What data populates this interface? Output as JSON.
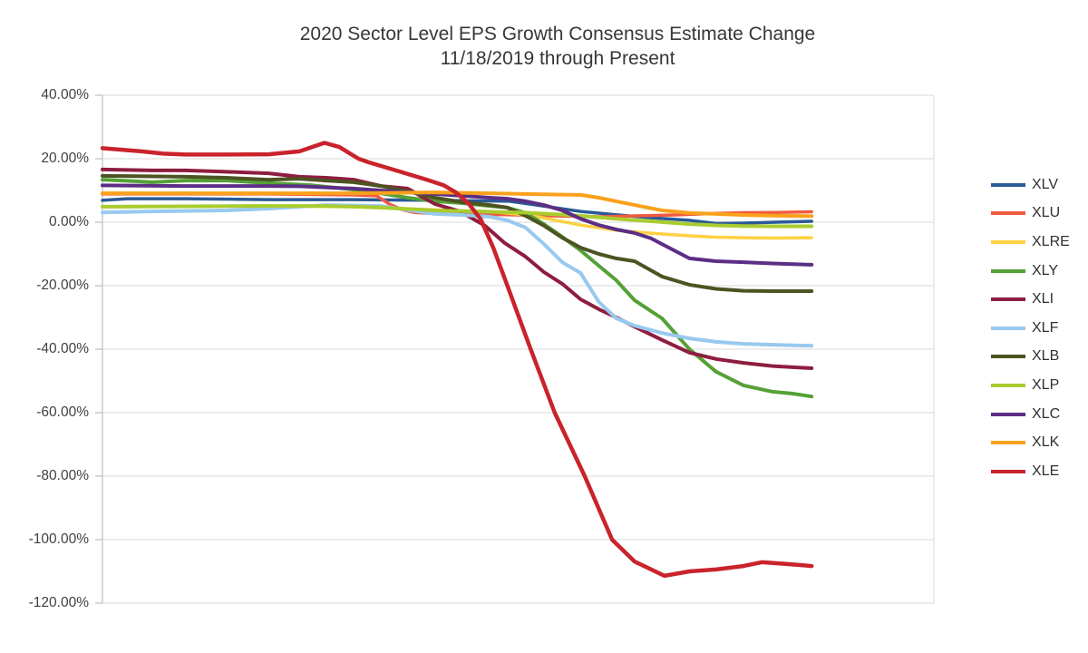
{
  "chart_data": {
    "type": "line",
    "title": "2020 Sector Level EPS Growth Consensus Estimate Change",
    "subtitle": "11/18/2019 through Present",
    "grid": true,
    "legend_position": "right",
    "y_axis": {
      "min": -120,
      "max": 40,
      "tick_step": 20,
      "format": "percent",
      "ticks": [
        {
          "label": "40.00%",
          "value": 40
        },
        {
          "label": "20.00%",
          "value": 20
        },
        {
          "label": "0.00%",
          "value": 0
        },
        {
          "label": "-20.00%",
          "value": -20
        },
        {
          "label": "-40.00%",
          "value": -40
        },
        {
          "label": "-60.00%",
          "value": -60
        },
        {
          "label": "-80.00%",
          "value": -80
        },
        {
          "label": "-100.00%",
          "value": -100
        },
        {
          "label": "-120.00%",
          "value": -120
        }
      ]
    },
    "x_axis": {
      "visible_labels": [],
      "span_fraction_of_plot_used_by_data": 0.853
    },
    "series": [
      {
        "name": "XLV",
        "color": "#2A5A95",
        "line_width": 3.5,
        "points": [
          [
            0,
            6.9
          ],
          [
            0.03,
            7.4
          ],
          [
            0.1,
            7.4
          ],
          [
            0.2,
            7.1
          ],
          [
            0.3,
            7.1
          ],
          [
            0.4,
            6.9
          ],
          [
            0.49,
            6.6
          ],
          [
            0.53,
            5.1
          ],
          [
            0.575,
            3.4
          ],
          [
            0.62,
            2.3
          ],
          [
            0.66,
            1.4
          ],
          [
            0.706,
            0.6
          ],
          [
            0.738,
            -0.4
          ],
          [
            0.771,
            -0.3
          ],
          [
            0.81,
            0.0
          ],
          [
            0.853,
            0.3
          ]
        ]
      },
      {
        "name": "XLU",
        "color": "#F05B40",
        "line_width": 3.5,
        "points": [
          [
            0,
            8.9
          ],
          [
            0.2,
            8.9
          ],
          [
            0.3,
            8.6
          ],
          [
            0.33,
            8.3
          ],
          [
            0.345,
            5.7
          ],
          [
            0.36,
            4.0
          ],
          [
            0.375,
            3.1
          ],
          [
            0.4,
            2.7
          ],
          [
            0.45,
            2.5
          ],
          [
            0.5,
            2.3
          ],
          [
            0.553,
            1.9
          ],
          [
            0.6,
            1.7
          ],
          [
            0.64,
            2.0
          ],
          [
            0.69,
            2.3
          ],
          [
            0.73,
            2.7
          ],
          [
            0.77,
            3.0
          ],
          [
            0.81,
            3.1
          ],
          [
            0.853,
            3.3
          ]
        ]
      },
      {
        "name": "XLRE",
        "color": "#FFD042",
        "line_width": 3.5,
        "points": [
          [
            0,
            4.9
          ],
          [
            0.1,
            5.0
          ],
          [
            0.2,
            5.1
          ],
          [
            0.3,
            4.9
          ],
          [
            0.4,
            3.9
          ],
          [
            0.433,
            3.6
          ],
          [
            0.466,
            3.4
          ],
          [
            0.51,
            2.3
          ],
          [
            0.53,
            1.4
          ],
          [
            0.575,
            -0.9
          ],
          [
            0.62,
            -2.6
          ],
          [
            0.64,
            -3.1
          ],
          [
            0.673,
            -3.7
          ],
          [
            0.706,
            -4.3
          ],
          [
            0.738,
            -4.7
          ],
          [
            0.771,
            -4.9
          ],
          [
            0.81,
            -5.0
          ],
          [
            0.853,
            -4.9
          ]
        ]
      },
      {
        "name": "XLY",
        "color": "#55A138",
        "line_width": 4,
        "points": [
          [
            0,
            13.4
          ],
          [
            0.04,
            12.9
          ],
          [
            0.06,
            12.6
          ],
          [
            0.1,
            13.1
          ],
          [
            0.15,
            13.1
          ],
          [
            0.2,
            12.3
          ],
          [
            0.25,
            11.7
          ],
          [
            0.3,
            10.3
          ],
          [
            0.335,
            9.1
          ],
          [
            0.367,
            7.7
          ],
          [
            0.4,
            6.6
          ],
          [
            0.433,
            6.0
          ],
          [
            0.466,
            5.1
          ],
          [
            0.487,
            4.6
          ],
          [
            0.509,
            2.9
          ],
          [
            0.531,
            -0.6
          ],
          [
            0.553,
            -4.6
          ],
          [
            0.575,
            -8.9
          ],
          [
            0.597,
            -13.7
          ],
          [
            0.618,
            -18.3
          ],
          [
            0.64,
            -24.6
          ],
          [
            0.673,
            -30.3
          ],
          [
            0.706,
            -40.0
          ],
          [
            0.738,
            -47.1
          ],
          [
            0.771,
            -51.4
          ],
          [
            0.806,
            -53.4
          ],
          [
            0.83,
            -54.0
          ],
          [
            0.853,
            -54.9
          ]
        ]
      },
      {
        "name": "XLI",
        "color": "#8E1D3F",
        "line_width": 4,
        "points": [
          [
            0,
            16.6
          ],
          [
            0.06,
            16.3
          ],
          [
            0.1,
            16.3
          ],
          [
            0.149,
            15.9
          ],
          [
            0.2,
            15.4
          ],
          [
            0.237,
            14.3
          ],
          [
            0.269,
            14.0
          ],
          [
            0.302,
            13.4
          ],
          [
            0.335,
            11.4
          ],
          [
            0.367,
            10.6
          ],
          [
            0.4,
            5.7
          ],
          [
            0.43,
            3.4
          ],
          [
            0.46,
            -1.1
          ],
          [
            0.484,
            -6.6
          ],
          [
            0.509,
            -10.9
          ],
          [
            0.531,
            -15.7
          ],
          [
            0.553,
            -19.4
          ],
          [
            0.575,
            -24.3
          ],
          [
            0.597,
            -27.4
          ],
          [
            0.618,
            -30.0
          ],
          [
            0.64,
            -32.9
          ],
          [
            0.673,
            -37.1
          ],
          [
            0.706,
            -41.1
          ],
          [
            0.738,
            -43.1
          ],
          [
            0.771,
            -44.3
          ],
          [
            0.806,
            -45.3
          ],
          [
            0.853,
            -46.0
          ]
        ]
      },
      {
        "name": "XLF",
        "color": "#99C9EE",
        "line_width": 4,
        "points": [
          [
            0,
            3.1
          ],
          [
            0.06,
            3.4
          ],
          [
            0.149,
            3.7
          ],
          [
            0.2,
            4.3
          ],
          [
            0.269,
            5.4
          ],
          [
            0.335,
            5.1
          ],
          [
            0.4,
            2.6
          ],
          [
            0.433,
            2.3
          ],
          [
            0.466,
            1.7
          ],
          [
            0.487,
            0.6
          ],
          [
            0.509,
            -1.7
          ],
          [
            0.531,
            -6.9
          ],
          [
            0.553,
            -12.6
          ],
          [
            0.575,
            -16.0
          ],
          [
            0.597,
            -25.1
          ],
          [
            0.618,
            -30.3
          ],
          [
            0.64,
            -32.6
          ],
          [
            0.673,
            -34.9
          ],
          [
            0.706,
            -36.6
          ],
          [
            0.738,
            -37.7
          ],
          [
            0.771,
            -38.3
          ],
          [
            0.806,
            -38.6
          ],
          [
            0.853,
            -38.9
          ]
        ]
      },
      {
        "name": "XLB",
        "color": "#4C5422",
        "line_width": 4,
        "points": [
          [
            0,
            14.6
          ],
          [
            0.1,
            14.3
          ],
          [
            0.149,
            14.0
          ],
          [
            0.2,
            13.4
          ],
          [
            0.237,
            13.7
          ],
          [
            0.269,
            13.1
          ],
          [
            0.302,
            12.6
          ],
          [
            0.335,
            11.4
          ],
          [
            0.367,
            9.7
          ],
          [
            0.4,
            7.7
          ],
          [
            0.433,
            6.3
          ],
          [
            0.466,
            5.4
          ],
          [
            0.487,
            4.6
          ],
          [
            0.509,
            2.0
          ],
          [
            0.531,
            -1.1
          ],
          [
            0.553,
            -4.9
          ],
          [
            0.575,
            -8.0
          ],
          [
            0.597,
            -10.0
          ],
          [
            0.618,
            -11.4
          ],
          [
            0.64,
            -12.3
          ],
          [
            0.673,
            -17.1
          ],
          [
            0.706,
            -19.7
          ],
          [
            0.738,
            -21.0
          ],
          [
            0.771,
            -21.6
          ],
          [
            0.806,
            -21.7
          ],
          [
            0.853,
            -21.7
          ]
        ]
      },
      {
        "name": "XLP",
        "color": "#A9CC2F",
        "line_width": 4,
        "points": [
          [
            0,
            4.9
          ],
          [
            0.1,
            5.0
          ],
          [
            0.2,
            5.1
          ],
          [
            0.269,
            5.1
          ],
          [
            0.302,
            4.9
          ],
          [
            0.335,
            4.6
          ],
          [
            0.4,
            3.7
          ],
          [
            0.466,
            3.3
          ],
          [
            0.509,
            3.0
          ],
          [
            0.553,
            2.4
          ],
          [
            0.575,
            2.0
          ],
          [
            0.618,
            1.1
          ],
          [
            0.66,
            0.3
          ],
          [
            0.706,
            -0.6
          ],
          [
            0.738,
            -1.0
          ],
          [
            0.771,
            -1.2
          ],
          [
            0.81,
            -1.3
          ],
          [
            0.853,
            -1.3
          ]
        ]
      },
      {
        "name": "XLC",
        "color": "#5C2E85",
        "line_width": 4,
        "points": [
          [
            0,
            11.6
          ],
          [
            0.1,
            11.4
          ],
          [
            0.2,
            11.4
          ],
          [
            0.237,
            11.3
          ],
          [
            0.302,
            10.6
          ],
          [
            0.367,
            9.4
          ],
          [
            0.4,
            8.9
          ],
          [
            0.433,
            8.3
          ],
          [
            0.466,
            7.7
          ],
          [
            0.487,
            7.4
          ],
          [
            0.509,
            6.6
          ],
          [
            0.531,
            5.4
          ],
          [
            0.553,
            3.7
          ],
          [
            0.575,
            1.1
          ],
          [
            0.597,
            -0.9
          ],
          [
            0.618,
            -2.3
          ],
          [
            0.64,
            -3.4
          ],
          [
            0.66,
            -5.1
          ],
          [
            0.673,
            -6.9
          ],
          [
            0.706,
            -11.4
          ],
          [
            0.738,
            -12.3
          ],
          [
            0.771,
            -12.6
          ],
          [
            0.806,
            -13.0
          ],
          [
            0.853,
            -13.4
          ]
        ]
      },
      {
        "name": "XLK",
        "color": "#F9A11B",
        "line_width": 4,
        "points": [
          [
            0,
            9.1
          ],
          [
            0.149,
            9.1
          ],
          [
            0.302,
            9.1
          ],
          [
            0.4,
            9.4
          ],
          [
            0.466,
            9.1
          ],
          [
            0.509,
            8.9
          ],
          [
            0.553,
            8.7
          ],
          [
            0.575,
            8.6
          ],
          [
            0.597,
            7.7
          ],
          [
            0.618,
            6.6
          ],
          [
            0.64,
            5.4
          ],
          [
            0.673,
            3.7
          ],
          [
            0.706,
            2.9
          ],
          [
            0.738,
            2.6
          ],
          [
            0.771,
            2.3
          ],
          [
            0.806,
            2.1
          ],
          [
            0.853,
            1.9
          ]
        ]
      },
      {
        "name": "XLE",
        "color": "#C9232C",
        "line_width": 4.5,
        "points": [
          [
            0,
            23.3
          ],
          [
            0.02,
            22.9
          ],
          [
            0.047,
            22.3
          ],
          [
            0.073,
            21.6
          ],
          [
            0.1,
            21.3
          ],
          [
            0.149,
            21.3
          ],
          [
            0.2,
            21.4
          ],
          [
            0.237,
            22.3
          ],
          [
            0.267,
            25.0
          ],
          [
            0.285,
            23.7
          ],
          [
            0.308,
            20.0
          ],
          [
            0.32,
            18.9
          ],
          [
            0.357,
            16.0
          ],
          [
            0.39,
            13.4
          ],
          [
            0.41,
            11.7
          ],
          [
            0.425,
            9.4
          ],
          [
            0.44,
            6.0
          ],
          [
            0.455,
            0.9
          ],
          [
            0.47,
            -8.0
          ],
          [
            0.487,
            -20.0
          ],
          [
            0.515,
            -40.0
          ],
          [
            0.544,
            -60.0
          ],
          [
            0.58,
            -80.0
          ],
          [
            0.613,
            -100.0
          ],
          [
            0.64,
            -106.9
          ],
          [
            0.676,
            -111.4
          ],
          [
            0.706,
            -110.0
          ],
          [
            0.738,
            -109.4
          ],
          [
            0.771,
            -108.3
          ],
          [
            0.793,
            -107.1
          ],
          [
            0.82,
            -107.6
          ],
          [
            0.853,
            -108.3
          ]
        ]
      }
    ],
    "colors": {
      "gridline": "#D9D9D9",
      "axis_line": "#BFBFBF",
      "title_text": "#373737",
      "tick_text": "#3F3F3F",
      "legend_text": "#303030"
    }
  }
}
